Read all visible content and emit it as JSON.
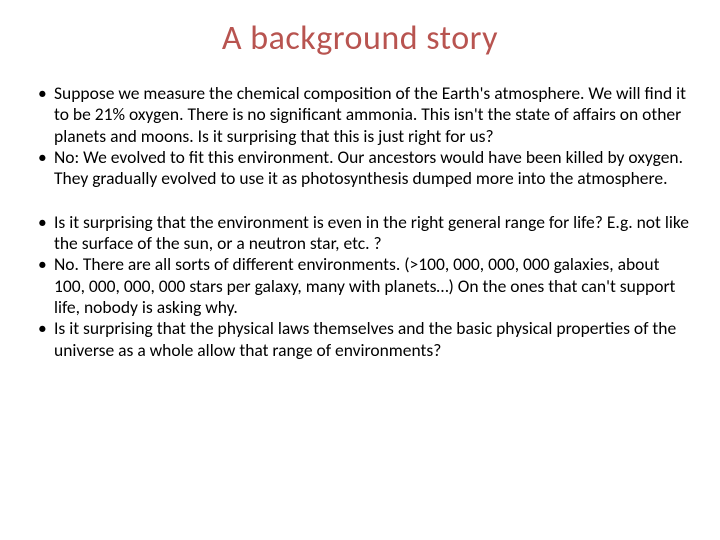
{
  "slide": {
    "title": "A background story",
    "title_color": "#b85450",
    "title_fontsize": 34,
    "body_fontsize": 17.5,
    "body_color": "#000000",
    "background_color": "#ffffff",
    "bullets_group1": [
      "Suppose we measure the chemical composition of the Earth's atmosphere. We will find it to be 21% oxygen. There is no significant ammonia. This isn't the state of affairs on other planets and moons. Is it surprising that this is just right for us?",
      "No: We evolved to fit this environment. Our ancestors would have been killed by oxygen. They gradually evolved to use it as photosynthesis dumped more into the atmosphere."
    ],
    "bullets_group2": [
      "Is it surprising that the environment is even in the right general range for life? E.g. not like the surface of the sun, or a neutron star, etc. ?",
      "No. There are all sorts of different environments. (>100, 000, 000, 000 galaxies, about 100, 000, 000, 000 stars per galaxy, many with planets…) On the ones that can't support life, nobody is asking why.",
      "Is it surprising that the physical laws themselves and the basic physical properties of the universe as a whole allow that range of environments?"
    ]
  }
}
